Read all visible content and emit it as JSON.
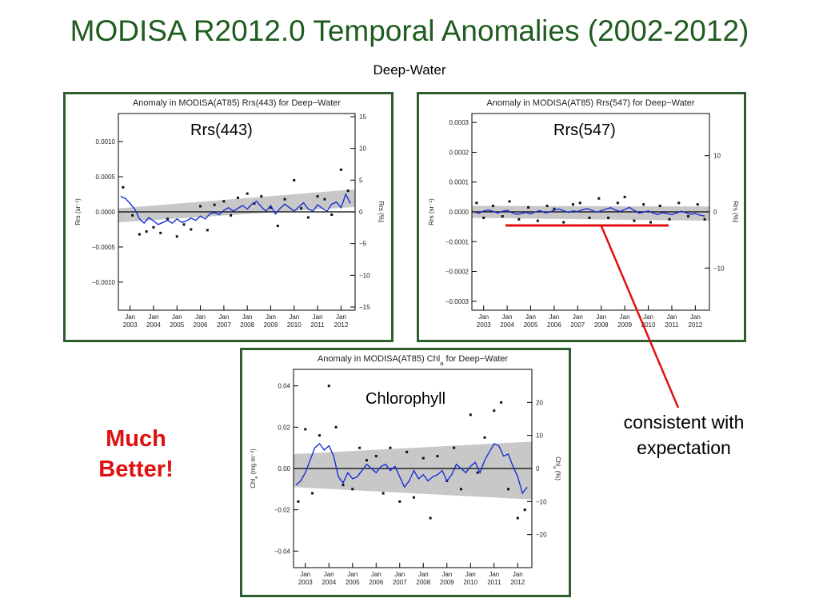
{
  "slide": {
    "title": "MODISA R2012.0 Temporal Anomalies (2002-2012)",
    "subtitle": "Deep-Water",
    "note_left_line1": "Much",
    "note_left_line2": "Better!",
    "note_right_line1": "consistent with",
    "note_right_line2": "expectation",
    "colors": {
      "title": "#1f5c1f",
      "frame": "#2e5e2e",
      "emphasis": "#e01010",
      "series": "#1a2fd1",
      "band": "#c8c8c8"
    }
  },
  "chart_data": [
    {
      "type": "line",
      "panel_label": "Rrs(443)",
      "title": "Anomaly in MODISA(AT85) Rrs(443) for Deep−Water",
      "ylabel": "Rrs (sr⁻¹)",
      "y2label": "Rrs (%)",
      "xlim": [
        2002.5,
        2012.6
      ],
      "ylim": [
        -0.0014,
        0.0014
      ],
      "y2lim": [
        -15.5,
        15.5
      ],
      "x_ticks": [
        2003,
        2004,
        2005,
        2006,
        2007,
        2008,
        2009,
        2010,
        2011,
        2012
      ],
      "x_tick_labels": [
        "2003",
        "2004",
        "2005",
        "2006",
        "2007",
        "2008",
        "2009",
        "2010",
        "2011",
        "2012"
      ],
      "x_tick_prefix": "Jan",
      "y_ticks": [
        0.001,
        0.0005,
        0.0,
        -0.0005,
        -0.001
      ],
      "y_tick_labels": [
        "0.0010",
        "0.0005",
        "0.0000",
        "−0.0005",
        "−0.0010"
      ],
      "y2_ticks": [
        15,
        10,
        5,
        0,
        -5,
        -10,
        -15
      ],
      "y2_tick_labels": [
        "15",
        "10",
        "5",
        "0",
        "−5",
        "−10",
        "−15"
      ],
      "band": {
        "start": [
          -0.00015,
          5e-05
        ],
        "end": [
          7e-05,
          0.00032
        ]
      },
      "series": [
        {
          "x": [
            2002.6,
            2002.8,
            2003.0,
            2003.2,
            2003.4,
            2003.6,
            2003.8,
            2004.0,
            2004.2,
            2004.4,
            2004.6,
            2004.8,
            2005.0,
            2005.2,
            2005.4,
            2005.6,
            2005.8,
            2006.0,
            2006.2,
            2006.4,
            2006.6,
            2006.8,
            2007.0,
            2007.2,
            2007.4,
            2007.6,
            2007.8,
            2008.0,
            2008.2,
            2008.4,
            2008.6,
            2008.8,
            2009.0,
            2009.2,
            2009.4,
            2009.6,
            2009.8,
            2010.0,
            2010.2,
            2010.4,
            2010.6,
            2010.8,
            2011.0,
            2011.2,
            2011.4,
            2011.6,
            2011.8,
            2012.0,
            2012.2,
            2012.4
          ],
          "values": [
            0.00022,
            0.00019,
            0.00012,
            4e-05,
            -0.0001,
            -0.00016,
            -8e-05,
            -0.00013,
            -0.00018,
            -0.00015,
            -0.00012,
            -0.00016,
            -0.0001,
            -0.00015,
            -0.00013,
            -9e-05,
            -0.00012,
            -6e-05,
            -0.0001,
            -3e-05,
            -1e-05,
            -4e-05,
            2e-05,
            6e-05,
            1e-05,
            5e-05,
            9e-05,
            4e-05,
            0.00011,
            0.00015,
            7e-05,
            1e-05,
            9e-05,
            -3e-05,
            5e-05,
            0.00011,
            6e-05,
            1e-05,
            7e-05,
            0.00013,
            4e-05,
            1e-05,
            0.0001,
            5e-05,
            1e-05,
            0.00011,
            0.00014,
            6e-05,
            0.00025,
            0.00012
          ]
        },
        {
          "x": [
            2002.7,
            2003.1,
            2003.4,
            2003.7,
            2004.0,
            2004.3,
            2004.6,
            2005.0,
            2005.3,
            2005.6,
            2006.0,
            2006.3,
            2006.6,
            2007.0,
            2007.3,
            2007.6,
            2008.0,
            2008.3,
            2008.6,
            2009.0,
            2009.3,
            2009.6,
            2010.0,
            2010.3,
            2010.6,
            2011.0,
            2011.3,
            2011.6,
            2012.0,
            2012.3
          ],
          "values": [
            0.00035,
            -5e-05,
            -0.00032,
            -0.00028,
            -0.00022,
            -0.0003,
            -0.0001,
            -0.00035,
            -0.00018,
            -0.00025,
            8e-05,
            -0.00026,
            0.0001,
            0.00015,
            -5e-05,
            0.0002,
            0.00026,
            0.00012,
            0.00022,
            6e-05,
            -0.0002,
            0.00018,
            0.00045,
            5e-05,
            -8e-05,
            0.00022,
            0.00018,
            -4e-05,
            0.0006,
            0.0003
          ]
        }
      ]
    },
    {
      "type": "line",
      "panel_label": "Rrs(547)",
      "title": "Anomaly in MODISA(AT85) Rrs(547) for Deep−Water",
      "ylabel": "Rrs (sr⁻¹)",
      "y2label": "Rrs (%)",
      "xlim": [
        2002.5,
        2012.6
      ],
      "ylim": [
        -0.00033,
        0.00033
      ],
      "y2lim": [
        -17.5,
        17.5
      ],
      "x_ticks": [
        2003,
        2004,
        2005,
        2006,
        2007,
        2008,
        2009,
        2010,
        2011,
        2012
      ],
      "x_tick_labels": [
        "2003",
        "2004",
        "2005",
        "2006",
        "2007",
        "2008",
        "2009",
        "2010",
        "2011",
        "2012"
      ],
      "x_tick_prefix": "Jan",
      "y_ticks": [
        0.0003,
        0.0002,
        0.0001,
        0.0,
        -0.0001,
        -0.0002,
        -0.0003
      ],
      "y_tick_labels": [
        "0.0003",
        "0.0002",
        "0.0001",
        "0.0000",
        "−0.0001",
        "−0.0002",
        "−0.0003"
      ],
      "y2_ticks": [
        10,
        0,
        -10
      ],
      "y2_tick_labels": [
        "10",
        "0",
        "−10"
      ],
      "band": {
        "start": [
          -2e-05,
          2e-05
        ],
        "end": [
          -3e-05,
          1.8e-05
        ]
      },
      "series": [
        {
          "x": [
            2002.6,
            2002.8,
            2003.0,
            2003.2,
            2003.4,
            2003.6,
            2003.8,
            2004.0,
            2004.2,
            2004.4,
            2004.6,
            2004.8,
            2005.0,
            2005.2,
            2005.4,
            2005.6,
            2005.8,
            2006.0,
            2006.2,
            2006.4,
            2006.6,
            2006.8,
            2007.0,
            2007.2,
            2007.4,
            2007.6,
            2007.8,
            2008.0,
            2008.2,
            2008.4,
            2008.6,
            2008.8,
            2009.0,
            2009.2,
            2009.4,
            2009.6,
            2009.8,
            2010.0,
            2010.2,
            2010.4,
            2010.6,
            2010.8,
            2011.0,
            2011.2,
            2011.4,
            2011.6,
            2011.8,
            2012.0,
            2012.2,
            2012.4
          ],
          "values": [
            0.0,
            -5e-06,
            3e-06,
            6e-06,
            2e-06,
            -4e-06,
            2e-06,
            5e-06,
            -3e-06,
            -8e-06,
            -6e-06,
            -2e-06,
            -7e-06,
            0.0,
            4e-06,
            -3e-06,
            -1e-06,
            6e-06,
            1e-05,
            4e-06,
            -2e-06,
            3e-06,
            1e-06,
            7e-06,
            1.1e-05,
            5e-06,
            -2e-06,
            4e-06,
            9e-06,
            1.4e-05,
            6e-06,
            1e-06,
            8e-06,
            1.5e-05,
            5e-06,
            -4e-06,
            -1e-06,
            3e-06,
            -4e-06,
            -9e-06,
            -3e-06,
            -6e-06,
            -9e-06,
            -4e-06,
            2e-06,
            -3e-06,
            -8e-06,
            -6e-06,
            -1.1e-05,
            -1.4e-05
          ]
        },
        {
          "x": [
            2002.7,
            2003.0,
            2003.4,
            2003.8,
            2004.1,
            2004.5,
            2004.9,
            2005.3,
            2005.7,
            2006.0,
            2006.4,
            2006.8,
            2007.1,
            2007.5,
            2007.9,
            2008.3,
            2008.7,
            2009.0,
            2009.4,
            2009.8,
            2010.1,
            2010.5,
            2010.9,
            2011.3,
            2011.7,
            2012.1,
            2012.4
          ],
          "values": [
            3e-05,
            -2e-05,
            2e-05,
            -1.5e-05,
            3.5e-05,
            -2.5e-05,
            1.5e-05,
            -3e-05,
            2e-05,
            1e-05,
            -3.5e-05,
            2.5e-05,
            3e-05,
            -2e-05,
            4.5e-05,
            -2e-05,
            3e-05,
            5e-05,
            -3e-05,
            2.5e-05,
            -3.5e-05,
            2e-05,
            -2.5e-05,
            3e-05,
            -1.5e-05,
            2.5e-05,
            -2.5e-05
          ]
        }
      ]
    },
    {
      "type": "line",
      "panel_label": "Chlorophyll",
      "title": "Anomaly in MODISA(AT85) Chl",
      "title_sub": "a",
      "title_suffix": " for Deep−Water",
      "ylabel": "Chl",
      "ylabel_sub": "a",
      "ylabel_suffix": " (mg m⁻³)",
      "y2label": "Chl",
      "y2label_sub": "a",
      "y2label_suffix": " (%)",
      "xlim": [
        2002.5,
        2012.6
      ],
      "ylim": [
        -0.048,
        0.048
      ],
      "y2lim": [
        -30,
        30
      ],
      "x_ticks": [
        2003,
        2004,
        2005,
        2006,
        2007,
        2008,
        2009,
        2010,
        2011,
        2012
      ],
      "x_tick_labels": [
        "2003",
        "2004",
        "2005",
        "2006",
        "2007",
        "2008",
        "2009",
        "2010",
        "2011",
        "2012"
      ],
      "x_tick_prefix": "Jan",
      "y_ticks": [
        0.04,
        0.02,
        0.0,
        -0.02,
        -0.04
      ],
      "y_tick_labels": [
        "0.04",
        "0.02",
        "0.00",
        "−0.02",
        "−0.04"
      ],
      "y2_ticks": [
        20,
        10,
        0,
        -10,
        -20
      ],
      "y2_tick_labels": [
        "20",
        "10",
        "0",
        "−10",
        "−20"
      ],
      "band": {
        "start": [
          -0.009,
          0.007
        ],
        "end": [
          -0.015,
          0.013
        ]
      },
      "series": [
        {
          "x": [
            2002.6,
            2002.8,
            2003.0,
            2003.2,
            2003.4,
            2003.6,
            2003.8,
            2004.0,
            2004.2,
            2004.4,
            2004.6,
            2004.8,
            2005.0,
            2005.2,
            2005.4,
            2005.6,
            2005.8,
            2006.0,
            2006.2,
            2006.4,
            2006.6,
            2006.8,
            2007.0,
            2007.2,
            2007.4,
            2007.6,
            2007.8,
            2008.0,
            2008.2,
            2008.4,
            2008.6,
            2008.8,
            2009.0,
            2009.2,
            2009.4,
            2009.6,
            2009.8,
            2010.0,
            2010.2,
            2010.4,
            2010.6,
            2010.8,
            2011.0,
            2011.2,
            2011.4,
            2011.6,
            2011.8,
            2012.0,
            2012.2,
            2012.4
          ],
          "values": [
            -0.008,
            -0.006,
            -0.002,
            0.004,
            0.01,
            0.012,
            0.009,
            0.011,
            0.006,
            -0.004,
            -0.007,
            -0.002,
            -0.005,
            -0.004,
            -0.001,
            0.002,
            0.0,
            -0.002,
            0.001,
            0.002,
            -0.001,
            0.001,
            -0.004,
            -0.009,
            -0.006,
            -0.001,
            -0.005,
            -0.003,
            -0.006,
            -0.004,
            -0.003,
            -0.001,
            -0.006,
            -0.003,
            0.002,
            0.0,
            -0.002,
            0.001,
            0.003,
            -0.002,
            0.004,
            0.008,
            0.012,
            0.011,
            0.006,
            0.007,
            0.001,
            -0.004,
            -0.012,
            -0.009
          ]
        },
        {
          "x": [
            2002.7,
            2003.0,
            2003.3,
            2003.6,
            2004.0,
            2004.3,
            2004.6,
            2005.0,
            2005.3,
            2005.6,
            2006.0,
            2006.3,
            2006.6,
            2007.0,
            2007.3,
            2007.6,
            2008.0,
            2008.3,
            2008.6,
            2009.0,
            2009.3,
            2009.6,
            2010.0,
            2010.3,
            2010.6,
            2011.0,
            2011.3,
            2011.6,
            2012.0,
            2012.3
          ],
          "values": [
            -0.016,
            0.019,
            -0.012,
            0.016,
            0.04,
            0.02,
            -0.008,
            -0.01,
            0.01,
            0.004,
            0.006,
            -0.012,
            0.01,
            -0.016,
            0.008,
            -0.014,
            0.005,
            -0.024,
            0.006,
            -0.006,
            0.01,
            -0.01,
            0.026,
            -0.002,
            0.015,
            0.028,
            0.032,
            -0.01,
            -0.024,
            -0.02
          ]
        }
      ]
    }
  ]
}
